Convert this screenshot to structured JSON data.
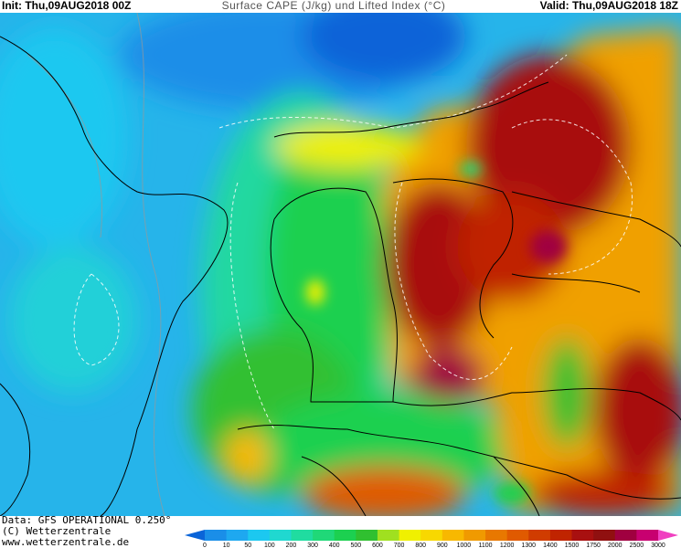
{
  "header": {
    "init": "Init: Thu,09AUG2018 00Z",
    "title": "Surface CAPE (J/kg) und Lifted Index (°C)",
    "valid": "Valid: Thu,09AUG2018 18Z"
  },
  "footer": {
    "data": "Data: GFS OPERATIONAL 0.250°",
    "copyright": "(C) Wetterzentrale",
    "url": "www.wetterzentrale.de"
  },
  "legend": {
    "labels": [
      0,
      10,
      50,
      100,
      200,
      300,
      400,
      500,
      600,
      700,
      800,
      900,
      1000,
      1100,
      1200,
      1300,
      1400,
      1500,
      1750,
      2000,
      2500,
      3000
    ],
    "colors": [
      "#0a64d8",
      "#1a8ee8",
      "#1ea8f0",
      "#1cc8f0",
      "#20d8d0",
      "#20dca0",
      "#20d878",
      "#1cd050",
      "#30c030",
      "#a0e020",
      "#f0f000",
      "#f8d800",
      "#f8b800",
      "#f09a00",
      "#e87800",
      "#e05a00",
      "#d03c00",
      "#c02400",
      "#a81010",
      "#901010",
      "#a00040",
      "#c80070",
      "#f040c0"
    ]
  }
}
